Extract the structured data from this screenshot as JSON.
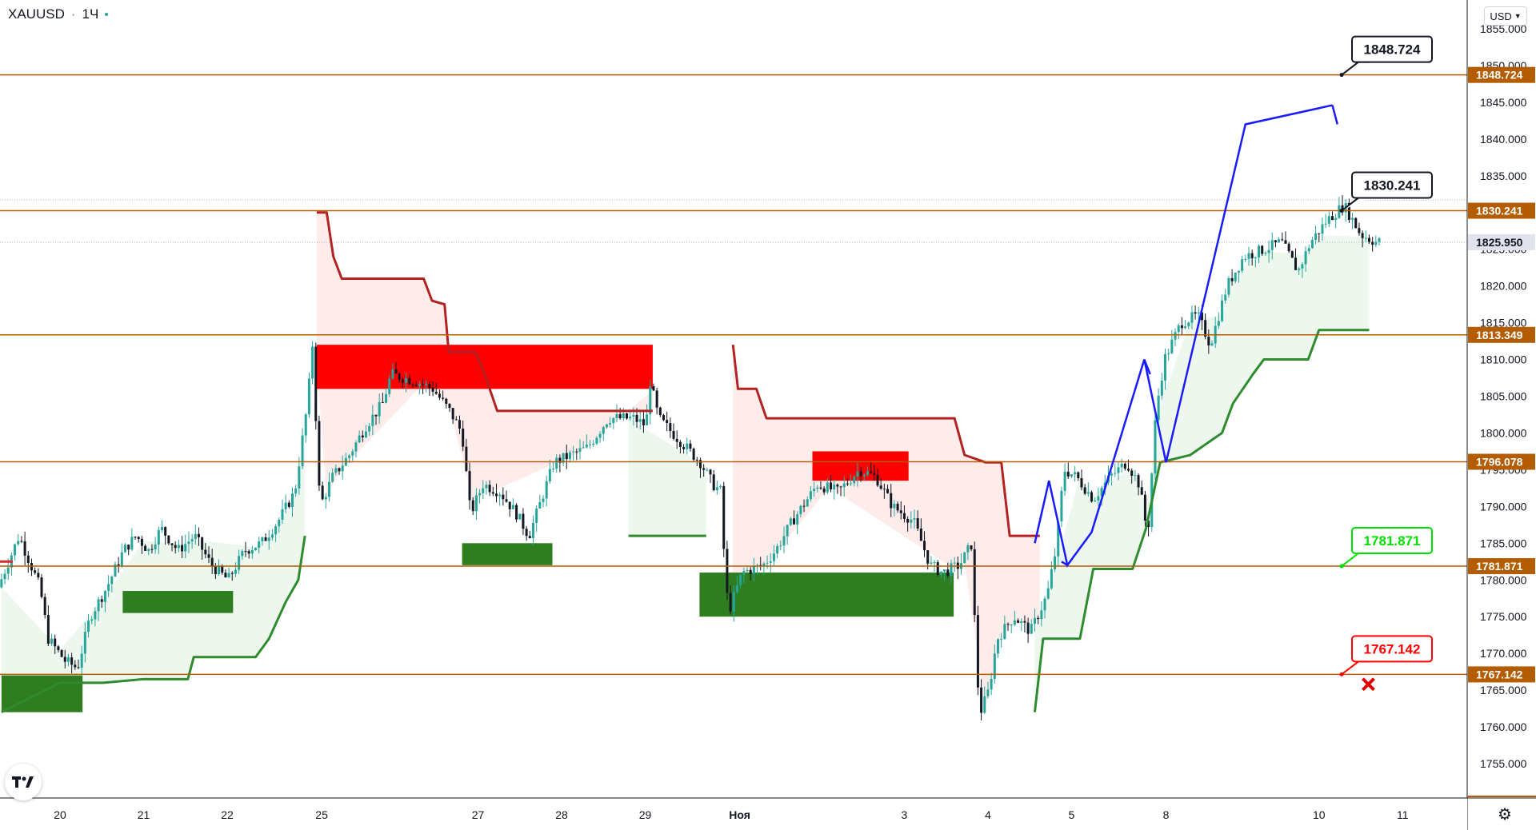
{
  "header": {
    "symbol": "XAUUSD",
    "interval": "1Ч",
    "currency": "USD"
  },
  "icons": {
    "logo": "tradingview-logo-icon",
    "settings": "gear-icon",
    "currency_chevron": "chevron-down-icon",
    "cross": "cross-icon"
  },
  "colors": {
    "level_line": "#b35c00",
    "bull_candle": "#26a69a",
    "bear_candle": "#131722",
    "red_zone": "#ff0000",
    "green_zone": "#2e7d1f",
    "trail_red": "#b22222",
    "trail_green": "#2e8b2e",
    "projection": "#1a1aff",
    "current_price_badge": "#e0e3eb"
  },
  "chart_data": {
    "type": "candlestick",
    "ylim": [
      1752,
      1858
    ],
    "y_ticks": [
      "1855.000",
      "1850.000",
      "1845.000",
      "1840.000",
      "1835.000",
      "1825.000",
      "1820.000",
      "1815.000",
      "1810.000",
      "1805.000",
      "1800.000",
      "1795.000",
      "1790.000",
      "1785.000",
      "1780.000",
      "1775.000",
      "1770.000",
      "1765.000",
      "1760.000",
      "1755.000"
    ],
    "y_tick_values": [
      1855,
      1850,
      1845,
      1840,
      1835,
      1825,
      1820,
      1815,
      1810,
      1805,
      1800,
      1795,
      1790,
      1785,
      1780,
      1775,
      1770,
      1765,
      1760,
      1755
    ],
    "x_ticks": [
      {
        "label": "20",
        "day": 0
      },
      {
        "label": "21",
        "day": 1
      },
      {
        "label": "22",
        "day": 2
      },
      {
        "label": "25",
        "day": 3.13
      },
      {
        "label": "27",
        "day": 5
      },
      {
        "label": "28",
        "day": 6
      },
      {
        "label": "29",
        "day": 7
      },
      {
        "label": "Ноя",
        "day": 8.13
      },
      {
        "label": "3",
        "day": 10.1
      },
      {
        "label": "4",
        "day": 11.1
      },
      {
        "label": "5",
        "day": 12.1
      },
      {
        "label": "8",
        "day": 13.23
      },
      {
        "label": "10",
        "day": 15.06
      },
      {
        "label": "11",
        "day": 16.06
      }
    ],
    "levels": [
      {
        "label": "1848.724",
        "value": 1848.724
      },
      {
        "label": "1830.241",
        "value": 1830.241
      },
      {
        "label": "1813.349",
        "value": 1813.349
      },
      {
        "label": "1796.078",
        "value": 1796.078
      },
      {
        "label": "1781.871",
        "value": 1781.871
      },
      {
        "label": "1767.142",
        "value": 1767.142
      }
    ],
    "current_price": {
      "label": "1825.950",
      "value": 1825.95
    },
    "callouts": [
      {
        "label": "1848.724",
        "value": 1848.724,
        "color": "#131722"
      },
      {
        "label": "1830.241",
        "value": 1830.241,
        "color": "#131722"
      },
      {
        "label": "1781.871",
        "value": 1781.871,
        "color": "#00e000"
      },
      {
        "label": "1767.142",
        "value": 1767.142,
        "color": "#ff0000"
      }
    ],
    "zones": [
      {
        "kind": "supply",
        "from": 3.07,
        "to": 7.09,
        "low": 1806,
        "high": 1812
      },
      {
        "kind": "supply",
        "from": 9.0,
        "to": 10.15,
        "low": 1793.5,
        "high": 1797.5
      },
      {
        "kind": "demand",
        "from": -0.7,
        "to": 0.27,
        "low": 1762,
        "high": 1767
      },
      {
        "kind": "demand",
        "from": 0.75,
        "to": 2.07,
        "low": 1775.5,
        "high": 1778.5
      },
      {
        "kind": "demand",
        "from": 4.81,
        "to": 5.89,
        "low": 1782,
        "high": 1785
      },
      {
        "kind": "demand",
        "from": 7.65,
        "to": 10.69,
        "low": 1775,
        "high": 1781
      }
    ],
    "trail_red": [
      [
        [
          3.07,
          1830
        ],
        [
          3.19,
          1830
        ],
        [
          3.27,
          1824
        ],
        [
          3.37,
          1821
        ],
        [
          4.35,
          1821
        ],
        [
          4.45,
          1818
        ],
        [
          4.6,
          1817.5
        ],
        [
          4.65,
          1811
        ],
        [
          4.97,
          1811
        ],
        [
          5.08,
          1808
        ],
        [
          5.23,
          1803
        ],
        [
          6.2,
          1803
        ],
        [
          7.09,
          1803
        ]
      ],
      [
        [
          8.05,
          1812
        ],
        [
          8.11,
          1806
        ],
        [
          8.33,
          1806
        ],
        [
          8.45,
          1802
        ],
        [
          9.2,
          1802
        ],
        [
          10.7,
          1802
        ],
        [
          10.82,
          1797
        ],
        [
          11.07,
          1796
        ],
        [
          11.26,
          1796
        ],
        [
          11.36,
          1786
        ],
        [
          11.72,
          1786
        ]
      ]
    ],
    "trail_green": [
      [
        [
          -0.7,
          1762
        ],
        [
          0.0,
          1766
        ],
        [
          0.52,
          1766
        ],
        [
          1.0,
          1766.5
        ],
        [
          1.53,
          1766.5
        ],
        [
          1.6,
          1769.5
        ],
        [
          2.34,
          1769.5
        ],
        [
          2.5,
          1772
        ],
        [
          2.7,
          1777
        ],
        [
          2.85,
          1780
        ],
        [
          2.93,
          1786
        ]
      ],
      [
        [
          6.8,
          1786
        ],
        [
          7.73,
          1786
        ]
      ],
      [
        [
          11.66,
          1762
        ],
        [
          11.76,
          1772
        ],
        [
          12.2,
          1772
        ],
        [
          12.36,
          1781.5
        ],
        [
          12.83,
          1781.5
        ],
        [
          12.99,
          1787
        ],
        [
          13.16,
          1796
        ],
        [
          13.52,
          1797
        ],
        [
          13.9,
          1800
        ],
        [
          14.03,
          1804
        ],
        [
          14.27,
          1808
        ],
        [
          14.4,
          1810
        ],
        [
          14.93,
          1810
        ],
        [
          15.06,
          1814
        ],
        [
          15.66,
          1814
        ]
      ]
    ],
    "projections": [
      [
        [
          11.66,
          1785
        ],
        [
          11.83,
          1793.5
        ],
        [
          12.05,
          1782
        ],
        [
          12.34,
          1786.5
        ],
        [
          12.97,
          1810
        ],
        [
          13.23,
          1796
        ],
        [
          14.18,
          1842
        ],
        [
          15.22,
          1844.6
        ]
      ],
      [
        [
          12.97,
          1810
        ],
        [
          13.04,
          1808
        ]
      ],
      [
        [
          12.05,
          1782
        ],
        [
          11.98,
          1782.5
        ]
      ],
      [
        [
          15.22,
          1844.6
        ],
        [
          15.28,
          1842
        ]
      ]
    ]
  }
}
